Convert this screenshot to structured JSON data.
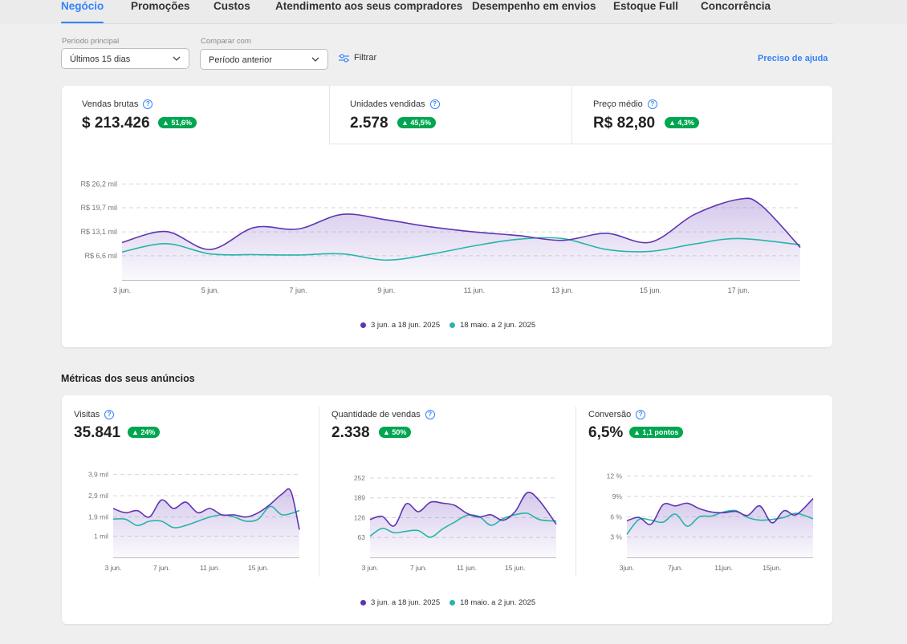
{
  "nav": {
    "tabs": [
      {
        "label": "Negócio",
        "active": true
      },
      {
        "label": "Promoções"
      },
      {
        "label": "Custos"
      },
      {
        "label": "Atendimento aos seus compradores"
      },
      {
        "label": "Desempenho em envios"
      },
      {
        "label": "Estoque Full"
      },
      {
        "label": "Concorrência"
      }
    ]
  },
  "filters": {
    "period_label": "Período principal",
    "period_value": "Últimos 15 dias",
    "compare_label": "Comparar com",
    "compare_value": "Período anterior",
    "filter_button": "Filtrar",
    "help_link": "Preciso de ajuda"
  },
  "kpis": [
    {
      "label": "Vendas brutas",
      "value": "$ 213.426",
      "change": "51,6%"
    },
    {
      "label": "Unidades vendidas",
      "value": "2.578",
      "change": "45,5%"
    },
    {
      "label": "Preço médio",
      "value": "R$ 82,80",
      "change": "4,3%"
    }
  ],
  "colors": {
    "current": "#5e35b1",
    "previous": "#26b5a8",
    "accent": "#3483fa",
    "positive": "#00a650"
  },
  "legend": {
    "current": "3 jun. a 18 jun. 2025",
    "previous": "18 maio. a 2 jun. 2025"
  },
  "section_title": "Métricas dos seus anúncios",
  "metrics": [
    {
      "label": "Visitas",
      "value": "35.841",
      "change": "24%"
    },
    {
      "label": "Quantidade de vendas",
      "value": "2.338",
      "change": "50%"
    },
    {
      "label": "Conversão",
      "value": "6,5%",
      "change": "1,1 pontos"
    }
  ],
  "chart_data": [
    {
      "type": "area",
      "title": "Vendas brutas",
      "ylim": [
        0,
        30000
      ],
      "yticks": [
        6600,
        13100,
        19700,
        26200
      ],
      "ytick_labels": [
        "R$ 6,6 mil",
        "R$ 13,1 mil",
        "R$ 19,7 mil",
        "R$ 26,2 mil"
      ],
      "xlim": [
        3,
        18.4
      ],
      "xticks": [
        3,
        5,
        7,
        9,
        11,
        13,
        15,
        17
      ],
      "xtick_labels": [
        "3 jun.",
        "5 jun.",
        "7 jun.",
        "9 jun.",
        "11 jun.",
        "13 jun.",
        "15 jun.",
        "17 jun."
      ],
      "grid": true,
      "legend": "bottom",
      "series": [
        {
          "name": "3 jun. a 18 jun. 2025",
          "x": [
            3,
            4,
            5,
            6,
            7,
            8,
            9,
            10,
            11,
            12,
            13,
            14,
            15,
            16,
            17,
            17.5,
            18.4
          ],
          "values": [
            10200,
            13200,
            8300,
            14300,
            13900,
            17900,
            16400,
            14500,
            13100,
            12100,
            10800,
            12700,
            10300,
            17900,
            22000,
            20500,
            8900
          ]
        },
        {
          "name": "18 maio. a 2 jun. 2025",
          "x": [
            3,
            4,
            5,
            6,
            7,
            8,
            9,
            10,
            11,
            12,
            13,
            14,
            15,
            16,
            17,
            18.4
          ],
          "values": [
            7600,
            9900,
            7100,
            6900,
            6800,
            7100,
            5400,
            7000,
            9300,
            11100,
            11300,
            8300,
            7800,
            9800,
            11300,
            9600
          ]
        }
      ]
    },
    {
      "type": "area",
      "title": "Visitas",
      "ylim": [
        0,
        4300
      ],
      "yticks": [
        1000,
        1900,
        2900,
        3900
      ],
      "ytick_labels": [
        "1 mil",
        "1,9 mil",
        "2,9 mil",
        "3,9 mil"
      ],
      "xlim": [
        3,
        18.4
      ],
      "xticks": [
        3,
        7,
        11,
        15
      ],
      "xtick_labels": [
        "3 jun.",
        "7 jun.",
        "11 jun.",
        "15 jun."
      ],
      "grid": true,
      "series": [
        {
          "name": "3 jun. a 18 jun. 2025",
          "x": [
            3,
            4,
            5,
            6,
            7,
            8,
            9,
            10,
            11,
            12,
            13,
            14,
            15,
            16,
            17,
            17.7,
            18.4
          ],
          "values": [
            2300,
            2100,
            2200,
            1900,
            2700,
            2300,
            2600,
            2100,
            2300,
            2000,
            2000,
            1900,
            2100,
            2500,
            3000,
            3100,
            1300
          ]
        },
        {
          "name": "18 maio. a 2 jun. 2025",
          "x": [
            3,
            4,
            5,
            6,
            7,
            8,
            9,
            10,
            11,
            12,
            13,
            14,
            15,
            16,
            17,
            18.4
          ],
          "values": [
            1800,
            1800,
            1500,
            1700,
            1700,
            1400,
            1500,
            1700,
            1900,
            2000,
            1900,
            1700,
            1800,
            2400,
            2000,
            2200
          ]
        }
      ]
    },
    {
      "type": "area",
      "title": "Quantidade de vendas",
      "ylim": [
        0,
        290
      ],
      "yticks": [
        63,
        126,
        189,
        252
      ],
      "ytick_labels": [
        "63",
        "126",
        "189",
        "252"
      ],
      "xlim": [
        3,
        18.4
      ],
      "xticks": [
        3,
        7,
        11,
        15
      ],
      "xtick_labels": [
        "3 jun.",
        "7 jun.",
        "11 jun.",
        "15 jun."
      ],
      "grid": true,
      "series": [
        {
          "name": "3 jun. a 18 jun. 2025",
          "x": [
            3,
            4,
            5,
            6,
            7,
            8,
            9,
            10,
            11,
            12,
            13,
            14,
            15,
            16,
            17,
            18.4
          ],
          "values": [
            120,
            130,
            100,
            170,
            145,
            175,
            172,
            165,
            140,
            128,
            135,
            118,
            145,
            205,
            180,
            105
          ]
        },
        {
          "name": "18 maio. a 2 jun. 2025",
          "x": [
            3,
            4,
            5,
            6,
            7,
            8,
            9,
            10,
            11,
            12,
            13,
            14,
            15,
            16,
            17,
            18.4
          ],
          "values": [
            67,
            92,
            78,
            83,
            85,
            64,
            90,
            112,
            133,
            130,
            102,
            123,
            135,
            140,
            120,
            115
          ]
        }
      ]
    },
    {
      "type": "area",
      "title": "Conversão",
      "ylim": [
        0,
        13.5
      ],
      "yticks": [
        3,
        6,
        9,
        12
      ],
      "ytick_labels": [
        "3 %",
        "6 %",
        "9%",
        "12 %"
      ],
      "xlim": [
        3,
        18.4
      ],
      "xticks": [
        3,
        7,
        11,
        15
      ],
      "xtick_labels": [
        "3jun.",
        "7jun.",
        "11jun.",
        "15jun."
      ],
      "grid": true,
      "series": [
        {
          "name": "3 jun. a 18 jun. 2025",
          "x": [
            3,
            4,
            5,
            6,
            7,
            8,
            9,
            10,
            11,
            12,
            13,
            14,
            15,
            16,
            17,
            18.4
          ],
          "values": [
            5.4,
            5.9,
            4.9,
            7.8,
            7.6,
            8.0,
            7.2,
            6.7,
            6.6,
            6.8,
            6.2,
            7.6,
            5.1,
            6.9,
            6.3,
            8.7
          ]
        },
        {
          "name": "18 maio. a 2 jun. 2025",
          "x": [
            3,
            4,
            5,
            6,
            7,
            8,
            9,
            10,
            11,
            12,
            13,
            14,
            15,
            16,
            17,
            18.4
          ],
          "values": [
            3.4,
            5.6,
            5.5,
            5.2,
            6.4,
            4.6,
            6.0,
            6.1,
            6.7,
            6.9,
            5.9,
            5.5,
            5.6,
            5.9,
            6.5,
            5.7
          ]
        }
      ]
    }
  ]
}
